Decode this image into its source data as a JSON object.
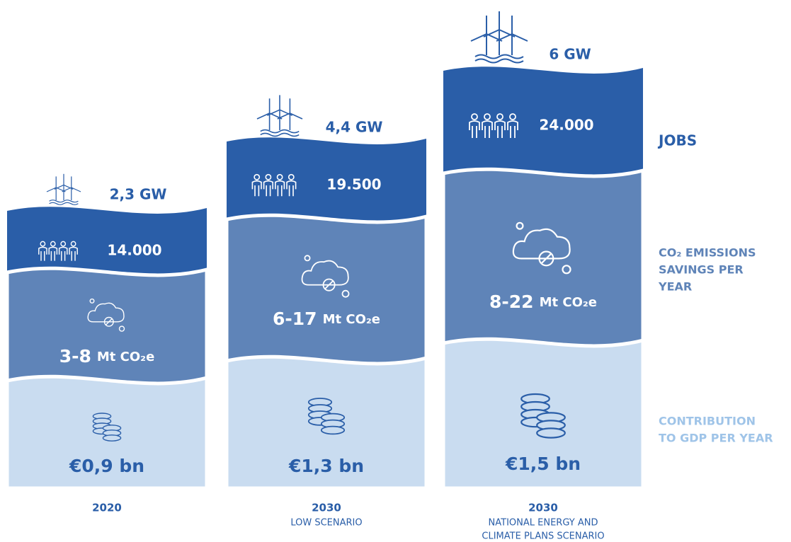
{
  "columns": [
    {
      "capacity": "2,3 GW",
      "jobs": "14.000",
      "co2_range": "3-8",
      "co2_unit": "Mt CO₂e",
      "gdp": "€0,9 bn",
      "year": "2020",
      "scenario": []
    },
    {
      "capacity": "4,4 GW",
      "jobs": "19.500",
      "co2_range": "6-17",
      "co2_unit": "Mt CO₂e",
      "gdp": "€1,3 bn",
      "year": "2030",
      "scenario": [
        "LOW SCENARIO"
      ]
    },
    {
      "capacity": "6 GW",
      "jobs": "24.000",
      "co2_range": "8-22",
      "co2_unit": "Mt CO₂e",
      "gdp": "€1,5 bn",
      "year": "2030",
      "scenario": [
        "NATIONAL ENERGY AND",
        "CLIMATE PLANS SCENARIO"
      ]
    }
  ],
  "legend": {
    "jobs": [
      "JOBS"
    ],
    "co2": [
      "CO₂ EMISSIONS",
      "SAVINGS PER",
      "YEAR"
    ],
    "gdp": [
      "CONTRIBUTION",
      "TO GDP PER YEAR"
    ]
  }
}
